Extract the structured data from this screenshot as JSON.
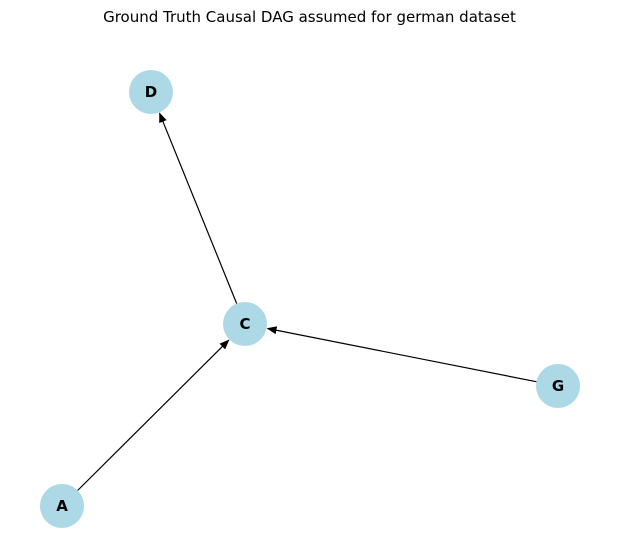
{
  "title": "Ground Truth Causal DAG assumed for german dataset",
  "colors": {
    "node_fill": "#add8e6",
    "edge": "#000000",
    "label": "#000000"
  },
  "nodes": [
    {
      "id": "D",
      "label": "D"
    },
    {
      "id": "C",
      "label": "C"
    },
    {
      "id": "G",
      "label": "G"
    },
    {
      "id": "A",
      "label": "A"
    }
  ],
  "edges": [
    {
      "from": "A",
      "to": "C"
    },
    {
      "from": "C",
      "to": "D"
    },
    {
      "from": "G",
      "to": "C"
    }
  ]
}
